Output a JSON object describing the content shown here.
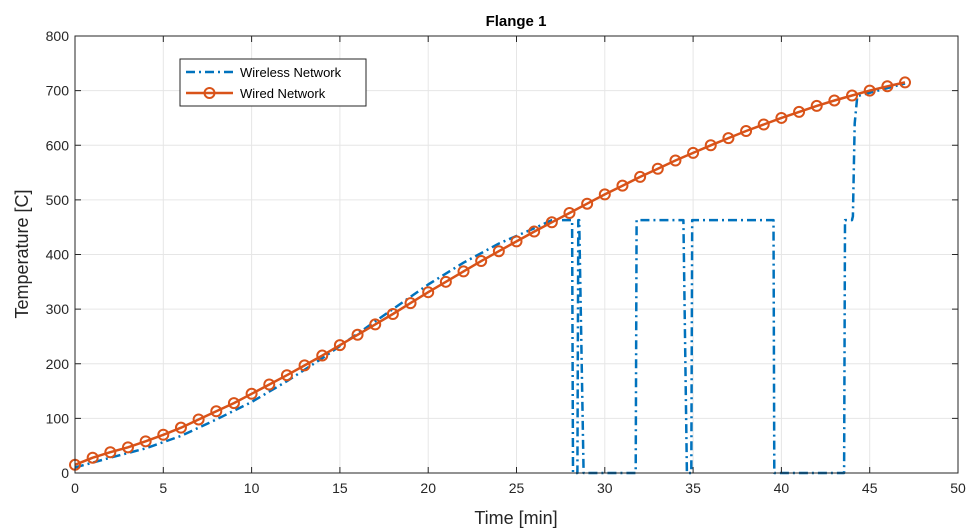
{
  "chart_data": {
    "type": "line",
    "title": "Flange 1",
    "xlabel": "Time [min]",
    "ylabel": "Temperature [C]",
    "xlim": [
      0,
      50
    ],
    "ylim": [
      0,
      800
    ],
    "xticks": [
      "0",
      "5",
      "10",
      "15",
      "20",
      "25",
      "30",
      "35",
      "40",
      "45",
      "50"
    ],
    "yticks": [
      "0",
      "100",
      "200",
      "300",
      "400",
      "500",
      "600",
      "700",
      "800"
    ],
    "grid": true,
    "legend_position": "top-left",
    "series": [
      {
        "name": "Wireless Network",
        "color": "#0072BD",
        "style": "dash-dot",
        "x": [
          0,
          2,
          4,
          6,
          8,
          10,
          12,
          14,
          16,
          18,
          20,
          22,
          24,
          26,
          27,
          28,
          28.15,
          28.2,
          28.45,
          28.5,
          28.55,
          28.8,
          28.85,
          31.75,
          31.8,
          34.4,
          34.45,
          34.65,
          34.9,
          34.95,
          35.0,
          39.55,
          39.6,
          43.5,
          43.55,
          43.6,
          44.0,
          44.05,
          44.15,
          44.3,
          47
        ],
        "y": [
          10,
          28,
          45,
          68,
          98,
          130,
          168,
          210,
          255,
          300,
          345,
          385,
          420,
          448,
          463,
          463,
          463,
          0,
          0,
          463,
          463,
          0,
          0,
          0,
          463,
          463,
          463,
          0,
          0,
          463,
          463,
          463,
          0,
          0,
          0,
          463,
          463,
          470,
          640,
          690,
          713
        ]
      },
      {
        "name": "Wired Network",
        "color": "#D95319",
        "style": "solid-circle",
        "x": [
          0,
          1,
          2,
          3,
          4,
          5,
          6,
          7,
          8,
          9,
          10,
          11,
          12,
          13,
          14,
          15,
          16,
          17,
          18,
          19,
          20,
          21,
          22,
          23,
          24,
          25,
          26,
          27,
          28,
          29,
          30,
          31,
          32,
          33,
          34,
          35,
          36,
          37,
          38,
          39,
          40,
          41,
          42,
          43,
          44,
          45,
          46,
          47
        ],
        "y": [
          15,
          28,
          38,
          47,
          58,
          70,
          83,
          98,
          113,
          128,
          145,
          162,
          179,
          197,
          215,
          234,
          253,
          272,
          291,
          311,
          331,
          350,
          369,
          388,
          406,
          424,
          442,
          459,
          476,
          493,
          510,
          526,
          542,
          557,
          572,
          586,
          600,
          613,
          626,
          638,
          650,
          661,
          672,
          682,
          691,
          700,
          708,
          715
        ]
      }
    ]
  }
}
